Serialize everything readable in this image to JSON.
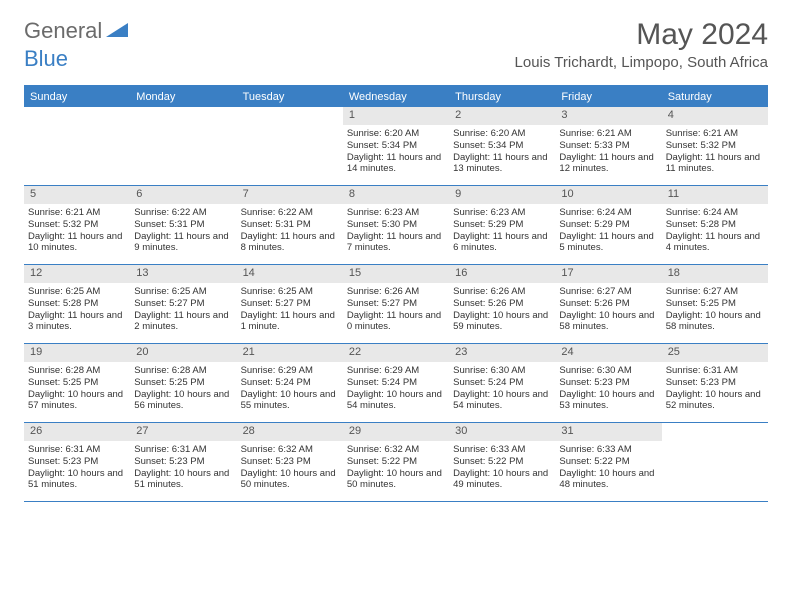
{
  "logo": {
    "general": "General",
    "blue": "Blue"
  },
  "title": "May 2024",
  "location": "Louis Trichardt, Limpopo, South Africa",
  "colors": {
    "accent": "#3a7fc4",
    "header_text": "#ffffff",
    "daynum_bg": "#e8e8e8",
    "body_text": "#333333",
    "title_text": "#555555"
  },
  "day_headers": [
    "Sunday",
    "Monday",
    "Tuesday",
    "Wednesday",
    "Thursday",
    "Friday",
    "Saturday"
  ],
  "weeks": [
    [
      null,
      null,
      null,
      {
        "n": "1",
        "sr": "Sunrise: 6:20 AM",
        "ss": "Sunset: 5:34 PM",
        "dl": "Daylight: 11 hours and 14 minutes."
      },
      {
        "n": "2",
        "sr": "Sunrise: 6:20 AM",
        "ss": "Sunset: 5:34 PM",
        "dl": "Daylight: 11 hours and 13 minutes."
      },
      {
        "n": "3",
        "sr": "Sunrise: 6:21 AM",
        "ss": "Sunset: 5:33 PM",
        "dl": "Daylight: 11 hours and 12 minutes."
      },
      {
        "n": "4",
        "sr": "Sunrise: 6:21 AM",
        "ss": "Sunset: 5:32 PM",
        "dl": "Daylight: 11 hours and 11 minutes."
      }
    ],
    [
      {
        "n": "5",
        "sr": "Sunrise: 6:21 AM",
        "ss": "Sunset: 5:32 PM",
        "dl": "Daylight: 11 hours and 10 minutes."
      },
      {
        "n": "6",
        "sr": "Sunrise: 6:22 AM",
        "ss": "Sunset: 5:31 PM",
        "dl": "Daylight: 11 hours and 9 minutes."
      },
      {
        "n": "7",
        "sr": "Sunrise: 6:22 AM",
        "ss": "Sunset: 5:31 PM",
        "dl": "Daylight: 11 hours and 8 minutes."
      },
      {
        "n": "8",
        "sr": "Sunrise: 6:23 AM",
        "ss": "Sunset: 5:30 PM",
        "dl": "Daylight: 11 hours and 7 minutes."
      },
      {
        "n": "9",
        "sr": "Sunrise: 6:23 AM",
        "ss": "Sunset: 5:29 PM",
        "dl": "Daylight: 11 hours and 6 minutes."
      },
      {
        "n": "10",
        "sr": "Sunrise: 6:24 AM",
        "ss": "Sunset: 5:29 PM",
        "dl": "Daylight: 11 hours and 5 minutes."
      },
      {
        "n": "11",
        "sr": "Sunrise: 6:24 AM",
        "ss": "Sunset: 5:28 PM",
        "dl": "Daylight: 11 hours and 4 minutes."
      }
    ],
    [
      {
        "n": "12",
        "sr": "Sunrise: 6:25 AM",
        "ss": "Sunset: 5:28 PM",
        "dl": "Daylight: 11 hours and 3 minutes."
      },
      {
        "n": "13",
        "sr": "Sunrise: 6:25 AM",
        "ss": "Sunset: 5:27 PM",
        "dl": "Daylight: 11 hours and 2 minutes."
      },
      {
        "n": "14",
        "sr": "Sunrise: 6:25 AM",
        "ss": "Sunset: 5:27 PM",
        "dl": "Daylight: 11 hours and 1 minute."
      },
      {
        "n": "15",
        "sr": "Sunrise: 6:26 AM",
        "ss": "Sunset: 5:27 PM",
        "dl": "Daylight: 11 hours and 0 minutes."
      },
      {
        "n": "16",
        "sr": "Sunrise: 6:26 AM",
        "ss": "Sunset: 5:26 PM",
        "dl": "Daylight: 10 hours and 59 minutes."
      },
      {
        "n": "17",
        "sr": "Sunrise: 6:27 AM",
        "ss": "Sunset: 5:26 PM",
        "dl": "Daylight: 10 hours and 58 minutes."
      },
      {
        "n": "18",
        "sr": "Sunrise: 6:27 AM",
        "ss": "Sunset: 5:25 PM",
        "dl": "Daylight: 10 hours and 58 minutes."
      }
    ],
    [
      {
        "n": "19",
        "sr": "Sunrise: 6:28 AM",
        "ss": "Sunset: 5:25 PM",
        "dl": "Daylight: 10 hours and 57 minutes."
      },
      {
        "n": "20",
        "sr": "Sunrise: 6:28 AM",
        "ss": "Sunset: 5:25 PM",
        "dl": "Daylight: 10 hours and 56 minutes."
      },
      {
        "n": "21",
        "sr": "Sunrise: 6:29 AM",
        "ss": "Sunset: 5:24 PM",
        "dl": "Daylight: 10 hours and 55 minutes."
      },
      {
        "n": "22",
        "sr": "Sunrise: 6:29 AM",
        "ss": "Sunset: 5:24 PM",
        "dl": "Daylight: 10 hours and 54 minutes."
      },
      {
        "n": "23",
        "sr": "Sunrise: 6:30 AM",
        "ss": "Sunset: 5:24 PM",
        "dl": "Daylight: 10 hours and 54 minutes."
      },
      {
        "n": "24",
        "sr": "Sunrise: 6:30 AM",
        "ss": "Sunset: 5:23 PM",
        "dl": "Daylight: 10 hours and 53 minutes."
      },
      {
        "n": "25",
        "sr": "Sunrise: 6:31 AM",
        "ss": "Sunset: 5:23 PM",
        "dl": "Daylight: 10 hours and 52 minutes."
      }
    ],
    [
      {
        "n": "26",
        "sr": "Sunrise: 6:31 AM",
        "ss": "Sunset: 5:23 PM",
        "dl": "Daylight: 10 hours and 51 minutes."
      },
      {
        "n": "27",
        "sr": "Sunrise: 6:31 AM",
        "ss": "Sunset: 5:23 PM",
        "dl": "Daylight: 10 hours and 51 minutes."
      },
      {
        "n": "28",
        "sr": "Sunrise: 6:32 AM",
        "ss": "Sunset: 5:23 PM",
        "dl": "Daylight: 10 hours and 50 minutes."
      },
      {
        "n": "29",
        "sr": "Sunrise: 6:32 AM",
        "ss": "Sunset: 5:22 PM",
        "dl": "Daylight: 10 hours and 50 minutes."
      },
      {
        "n": "30",
        "sr": "Sunrise: 6:33 AM",
        "ss": "Sunset: 5:22 PM",
        "dl": "Daylight: 10 hours and 49 minutes."
      },
      {
        "n": "31",
        "sr": "Sunrise: 6:33 AM",
        "ss": "Sunset: 5:22 PM",
        "dl": "Daylight: 10 hours and 48 minutes."
      },
      null
    ]
  ]
}
